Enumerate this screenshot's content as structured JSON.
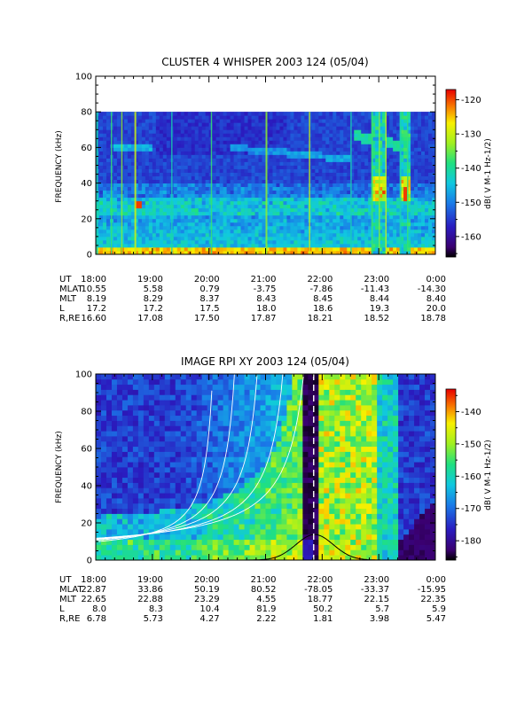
{
  "chart_data": [
    {
      "type": "heatmap",
      "title": "CLUSTER 4 WHISPER 2003 124 (05/04)",
      "ylabel": "FREQUENCY (kHz)",
      "ylim": [
        0,
        100
      ],
      "yticks": [
        "0",
        "20",
        "40",
        "60",
        "80",
        "100"
      ],
      "xlim": [
        "18:00",
        "0:00"
      ],
      "colorbar": {
        "label": "dB( V M⁻¹ Hz⁻¹ᐟ²)",
        "label_plain": "dB( V M-1 Hz-1/2)",
        "range": [
          -166,
          -117
        ],
        "ticks": [
          "-120",
          "-130",
          "-140",
          "-150",
          "-160"
        ]
      },
      "data_ceiling_khz": 80,
      "ephemeris": {
        "UT": [
          "18:00",
          "19:00",
          "20:00",
          "21:00",
          "22:00",
          "23:00",
          "0:00"
        ],
        "MLAT": [
          "10.55",
          "5.58",
          "0.79",
          "-3.75",
          "-7.86",
          "-11.43",
          "-14.30"
        ],
        "MLT": [
          "8.19",
          "8.29",
          "8.37",
          "8.43",
          "8.45",
          "8.44",
          "8.40"
        ],
        "L": [
          "17.2",
          "17.2",
          "17.5",
          "18.0",
          "18.6",
          "19.3",
          "20.0"
        ],
        "R,RE": [
          "16.60",
          "17.08",
          "17.50",
          "17.87",
          "18.21",
          "18.52",
          "18.78"
        ]
      }
    },
    {
      "type": "heatmap",
      "title": "IMAGE RPI XY 2003 124 (05/04)",
      "ylabel": "FREQUENCY (kHz)",
      "ylim": [
        0,
        100
      ],
      "yticks": [
        "0",
        "20",
        "40",
        "60",
        "80",
        "100"
      ],
      "xlim": [
        "18:00",
        "0:00"
      ],
      "colorbar": {
        "label": "dB( V M⁻¹ Hz⁻¹ᐟ²)",
        "label_plain": "dB( V M-1 Hz-1/2)",
        "range": [
          -186,
          -133
        ],
        "ticks": [
          "-140",
          "-150",
          "-160",
          "-170",
          "-180"
        ]
      },
      "ephemeris": {
        "UT": [
          "18:00",
          "19:00",
          "20:00",
          "21:00",
          "22:00",
          "23:00",
          "0:00"
        ],
        "MLAT": [
          "22.87",
          "33.86",
          "50.19",
          "80.52",
          "-78.05",
          "-33.37",
          "-15.95"
        ],
        "MLT": [
          "22.65",
          "22.88",
          "23.29",
          "4.55",
          "18.77",
          "22.15",
          "22.35"
        ],
        "L": [
          "8.0",
          "8.3",
          "10.4",
          "81.9",
          "50.2",
          "5.7",
          "5.9"
        ],
        "R,RE": [
          "6.78",
          "5.73",
          "4.27",
          "2.22",
          "1.81",
          "3.98",
          "5.47"
        ]
      }
    }
  ],
  "colors": {
    "axis": "#000000",
    "overlay_curve": "#ffffff",
    "plasma_freq_curve": "#000000"
  }
}
